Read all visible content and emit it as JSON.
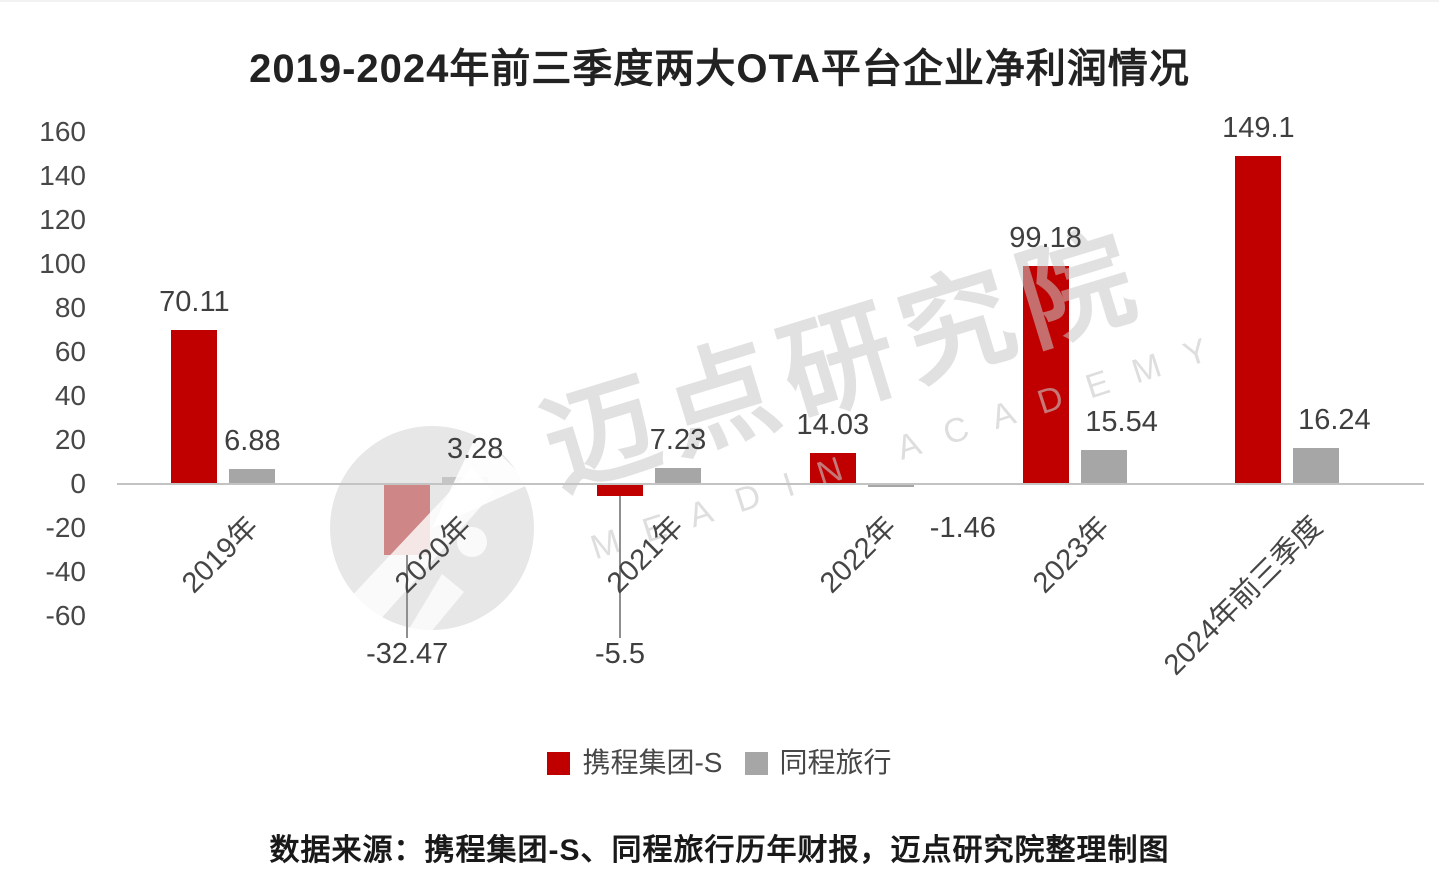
{
  "source_note": "数据来源：携程集团-S、同程旅行历年财报，迈点研究院整理制图",
  "watermark": {
    "cn": "迈点研究院",
    "en": "MEADIN ACADEMY",
    "logo_icon": "meadin-circle-logo"
  },
  "chart_data": {
    "type": "bar",
    "title": "2019-2024年前三季度两大OTA平台企业净利润情况",
    "categories": [
      "2019年",
      "2020年",
      "2021年",
      "2022年",
      "2023年",
      "2024年前三季度"
    ],
    "series": [
      {
        "name": "携程集团-S",
        "color": "#c00000",
        "values": [
          70.11,
          -32.47,
          -5.5,
          14.03,
          99.18,
          149.1
        ]
      },
      {
        "name": "同程旅行",
        "color": "#a6a6a6",
        "values": [
          6.88,
          3.28,
          7.23,
          -1.46,
          15.54,
          16.24
        ]
      }
    ],
    "y_ticks": [
      160,
      140,
      120,
      100,
      80,
      60,
      40,
      20,
      0,
      -20,
      -40,
      -60
    ],
    "ylim": [
      -60,
      160
    ],
    "xlabel": "",
    "ylabel": "",
    "grid": false,
    "value_labels": true,
    "legend_position": "bottom",
    "axis_line_color": "#c3c3c3",
    "label_color": "#3f3f3f"
  }
}
